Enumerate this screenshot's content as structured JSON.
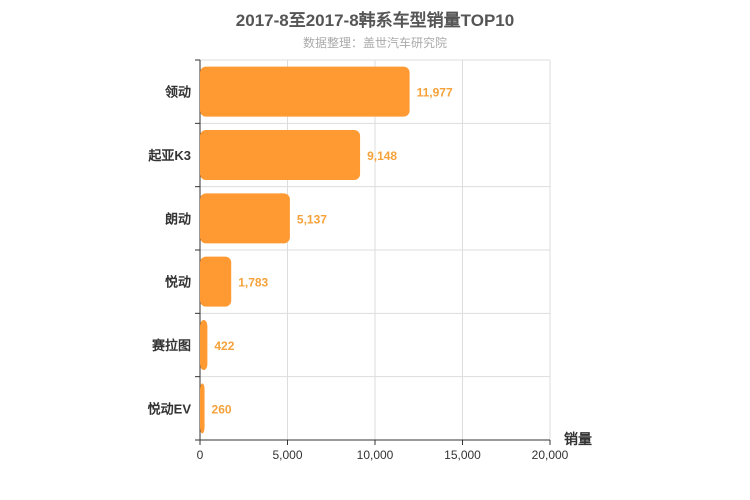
{
  "chart_data": {
    "type": "bar",
    "orientation": "horizontal",
    "title": "2017-8至2017-8韩系车型销量TOP10",
    "subtitle": "数据整理：盖世汽车研究院",
    "categories": [
      "领动",
      "起亚K3",
      "朗动",
      "悦动",
      "赛拉图",
      "悦动EV"
    ],
    "values": [
      11977,
      9148,
      5137,
      1783,
      422,
      260
    ],
    "value_labels": [
      "11,977",
      "9,148",
      "5,137",
      "1,783",
      "422",
      "260"
    ],
    "xlabel": "销量",
    "ylabel": "",
    "xlim": [
      0,
      20000
    ],
    "xticks": [
      0,
      5000,
      10000,
      15000,
      20000
    ],
    "xtick_labels": [
      "0",
      "5,000",
      "10,000",
      "15,000",
      "20,000"
    ],
    "grid": true,
    "bar_color": "#ff9a33"
  }
}
